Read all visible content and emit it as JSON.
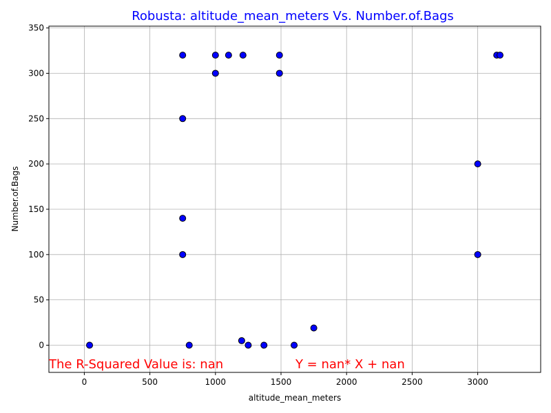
{
  "chart_data": {
    "type": "scatter",
    "title": "Robusta: altitude_mean_meters Vs. Number.of.Bags",
    "xlabel": "altitude_mean_meters",
    "ylabel": "Number.of.Bags",
    "xlim": [
      -270,
      3480
    ],
    "ylim": [
      -30,
      352
    ],
    "xticks": [
      0,
      500,
      1000,
      1500,
      2000,
      2500,
      3000
    ],
    "yticks": [
      0,
      50,
      100,
      150,
      200,
      250,
      300,
      350
    ],
    "grid": true,
    "x": [
      40,
      750,
      750,
      750,
      750,
      800,
      1000,
      1000,
      1100,
      1200,
      1210,
      1250,
      1370,
      1488,
      1488,
      1600,
      1750,
      3000,
      3000,
      3145,
      3170
    ],
    "y": [
      0,
      320,
      250,
      140,
      100,
      0,
      320,
      300,
      320,
      5,
      320,
      0,
      0,
      320,
      300,
      0,
      19,
      200,
      100,
      320,
      320
    ],
    "marker_color": "#0000ff",
    "marker_edge": "#000000",
    "title_color": "#0000ff",
    "annotations": [
      {
        "text": "The R-Squared Value is: nan",
        "x": -270,
        "y": -20,
        "color": "#ff0000"
      },
      {
        "text": "Y = nan* X + nan",
        "x": 1610,
        "y": -20,
        "color": "#ff0000"
      }
    ]
  }
}
